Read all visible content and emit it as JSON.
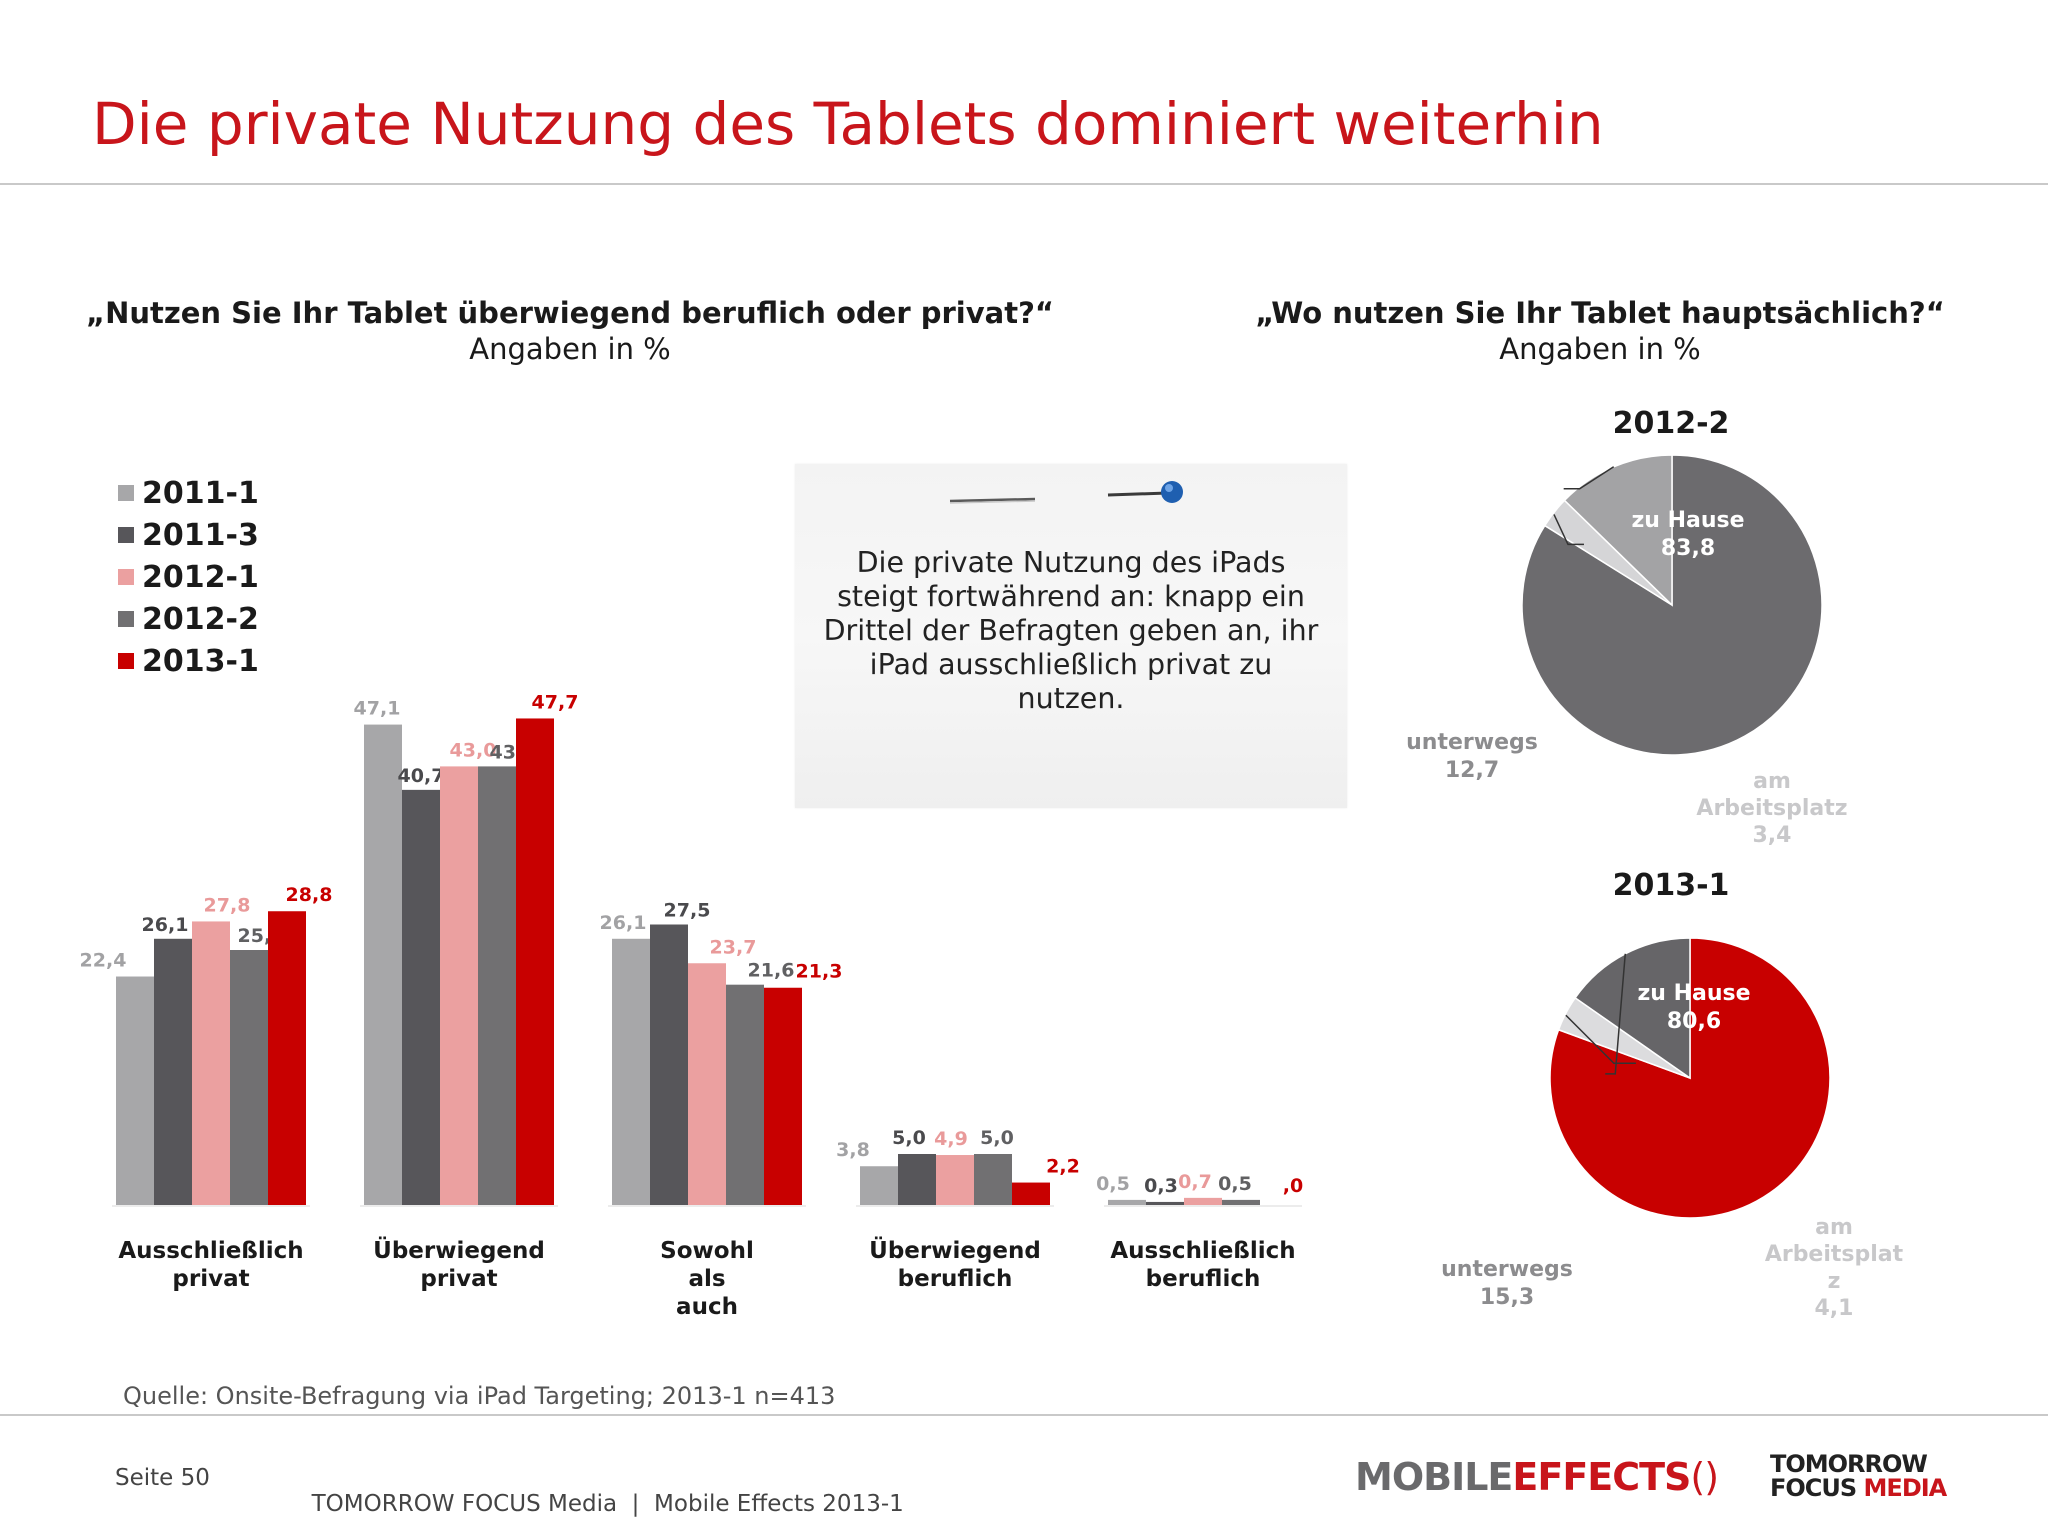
{
  "title": "Die private Nutzung des Tablets dominiert weiterhin",
  "left_question": {
    "title": "„Nutzen Sie Ihr Tablet überwiegend beruflich oder privat?“",
    "subtitle": "Angaben in %"
  },
  "right_question": {
    "title": "„Wo nutzen Sie Ihr Tablet hauptsächlich?“",
    "subtitle": "Angaben in %"
  },
  "legend": [
    {
      "label": "2011-1",
      "color": "#a7a7a9"
    },
    {
      "label": "2011-3",
      "color": "#57565a"
    },
    {
      "label": "2012-1",
      "color": "#eba0a0"
    },
    {
      "label": "2012-2",
      "color": "#717072"
    },
    {
      "label": "2013-1",
      "color": "#c80000"
    }
  ],
  "callout": {
    "text": "Die private Nutzung des iPads steigt fortwährend an: knapp ein Drittel der Befragten geben an, ihr iPad ausschließlich privat zu nutzen."
  },
  "source": "Quelle: Onsite-Befragung via iPad Targeting; 2013-1 n=413",
  "footer": {
    "page": "Seite 50",
    "company": "TOMORROW FOCUS Media  |  Mobile Effects 2013-1"
  },
  "logos": {
    "mobile": "MOBILE",
    "effects": "EFFECTS",
    "tomorrow": "TOMORROW",
    "focus": "FOCUS",
    "media": "MEDIA"
  },
  "chart_data": [
    {
      "type": "bar",
      "categories": [
        "Ausschließlich privat",
        "Überwiegend privat",
        "Sowohl als auch",
        "Überwiegend beruflich",
        "Ausschließlich beruflich"
      ],
      "series": [
        {
          "name": "2011-1",
          "values": [
            22.4,
            47.1,
            26.1,
            3.8,
            0.5
          ],
          "labels": [
            "22,4",
            "47,1",
            "26,1",
            "3,8",
            "0,5"
          ],
          "color": "#a7a7a9",
          "label_color": "#a2a2a4"
        },
        {
          "name": "2011-3",
          "values": [
            26.1,
            40.7,
            27.5,
            5.0,
            0.3
          ],
          "labels": [
            "26,1",
            "40,7",
            "27,5",
            "5,0",
            "0,3"
          ],
          "color": "#57565a",
          "label_color": "#4a4a4d"
        },
        {
          "name": "2012-1",
          "values": [
            27.8,
            43.0,
            23.7,
            4.9,
            0.7
          ],
          "labels": [
            "27,8",
            "43,0",
            "23,7",
            "4,9",
            "0,7"
          ],
          "color": "#eba0a0",
          "label_color": "#e99a9a"
        },
        {
          "name": "2012-2",
          "values": [
            25.0,
            43.0,
            21.6,
            5.0,
            0.5
          ],
          "labels": [
            "25,0",
            "43,0",
            "21,6",
            "5,0",
            "0,5"
          ],
          "color": "#717072",
          "label_color": "#606062"
        },
        {
          "name": "2013-1",
          "values": [
            28.8,
            47.7,
            21.3,
            2.2,
            0.0
          ],
          "labels": [
            "28,8",
            "47,7",
            "21,3",
            "2,2",
            ",0"
          ],
          "color": "#c80000",
          "label_color": "#c80000"
        }
      ],
      "ylim": [
        0,
        50
      ],
      "legend": "top-left"
    },
    {
      "type": "pie",
      "title": "2012-2",
      "slices": [
        {
          "label": "zu Hause",
          "value": 83.8,
          "value_label": "83,8",
          "color": "#6c6b6e",
          "label_color": "#ffffff"
        },
        {
          "label": "am Arbeitsplatz",
          "value": 3.4,
          "value_label": "3,4",
          "color": "#d5d5d7",
          "label_color": "#c8c8ca"
        },
        {
          "label": "unterwegs",
          "value": 12.7,
          "value_label": "12,7",
          "color": "#a3a3a5",
          "label_color": "#8c8c8e"
        }
      ]
    },
    {
      "type": "pie",
      "title": "2013-1",
      "slices": [
        {
          "label": "zu Hause",
          "value": 80.6,
          "value_label": "80,6",
          "color": "#c80000",
          "label_color": "#ffffff"
        },
        {
          "label": "am Arbeitsplatz",
          "value": 4.1,
          "value_label": "4,1",
          "color": "#dcdcde",
          "label_color": "#c8c8ca"
        },
        {
          "label": "unterwegs",
          "value": 15.3,
          "value_label": "15,3",
          "color": "#666568",
          "label_color": "#8c8c8e"
        }
      ]
    }
  ]
}
